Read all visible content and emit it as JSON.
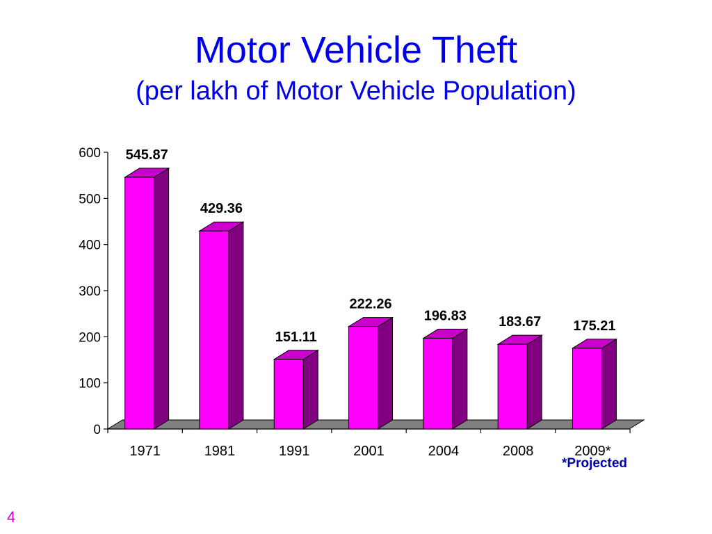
{
  "slide": {
    "title": "Motor Vehicle Theft",
    "subtitle": "(per lakh of Motor Vehicle Population)",
    "footnote": "*Projected",
    "page_number": "4"
  },
  "colors": {
    "title": "#0000ee",
    "bar_front": "#ff00ff",
    "bar_side": "#800080",
    "bar_top": "#cc00cc",
    "floor": "#808080",
    "footnote": "#0000aa",
    "page_number": "#cc00cc"
  },
  "chart_data": {
    "type": "bar",
    "style": "3d",
    "title": "Motor Vehicle Theft",
    "subtitle": "(per lakh of Motor Vehicle Population)",
    "categories": [
      "1971",
      "1981",
      "1991",
      "2001",
      "2004",
      "2008",
      "2009*"
    ],
    "values": [
      545.87,
      429.36,
      151.11,
      222.26,
      196.83,
      183.67,
      175.21
    ],
    "data_labels": [
      "545.87",
      "429.36",
      "151.11",
      "222.26",
      "196.83",
      "183.67",
      "175.21"
    ],
    "y_ticks": [
      0,
      100,
      200,
      300,
      400,
      500,
      600
    ],
    "ylim": [
      0,
      600
    ],
    "xlabel": "",
    "ylabel": "",
    "grid": false,
    "legend": "none"
  }
}
